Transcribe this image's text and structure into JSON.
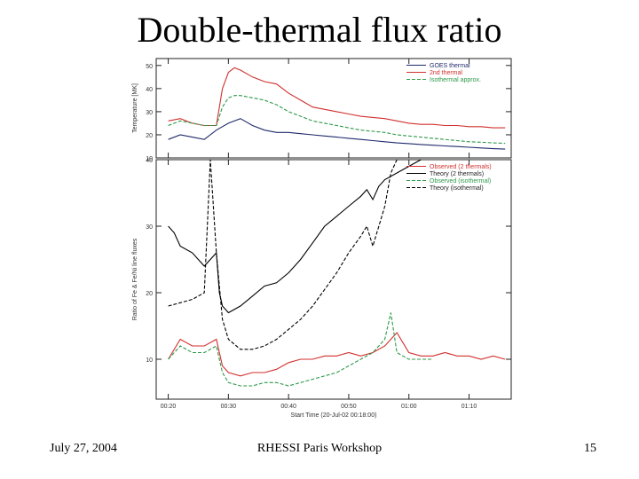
{
  "slide": {
    "title": "Double-thermal flux ratio",
    "footer_date": "July 27, 2004",
    "footer_center": "RHESSI Paris Workshop",
    "page_number": "15"
  },
  "chart_data": [
    {
      "type": "line",
      "ylabel": "Temperature [MK]",
      "ylim": [
        10,
        53
      ],
      "yticks": [
        10,
        20,
        30,
        40,
        50
      ],
      "xlim": [
        18,
        77
      ],
      "xticks": [
        20,
        30,
        40,
        50,
        60,
        70
      ],
      "legend_position": "top-right",
      "series": [
        {
          "name": "GOES thermal",
          "color": "#1f2a6b",
          "style": "solid",
          "x": [
            20,
            22,
            24,
            26,
            28,
            30,
            32,
            34,
            36,
            38,
            40,
            42,
            44,
            46,
            48,
            50,
            52,
            54,
            56,
            58,
            60,
            62,
            64,
            66,
            68,
            70,
            72,
            74,
            76
          ],
          "y": [
            18,
            20,
            19,
            18,
            22,
            25,
            27,
            24,
            22,
            21,
            21,
            20.5,
            20,
            19.5,
            19,
            18.5,
            18,
            17.5,
            17,
            16.5,
            16.2,
            15.8,
            15.5,
            15.2,
            14.9,
            14.6,
            14.3,
            14,
            13.8
          ]
        },
        {
          "name": "2nd thermal",
          "color": "#d0302e",
          "style": "solid",
          "x": [
            20,
            22,
            24,
            26,
            28,
            29,
            30,
            31,
            32,
            34,
            36,
            38,
            40,
            42,
            44,
            46,
            48,
            50,
            52,
            54,
            56,
            58,
            60,
            62,
            64,
            66,
            68,
            70,
            72,
            74,
            76
          ],
          "y": [
            26,
            27,
            25,
            24,
            24,
            40,
            47,
            49,
            48,
            45,
            43,
            42,
            38,
            35,
            32,
            31,
            30,
            29,
            28,
            27.5,
            27,
            26,
            25,
            24.5,
            24.5,
            24,
            24,
            23.5,
            23.5,
            23,
            23
          ]
        },
        {
          "name": "Isothermal approx.",
          "color": "#2e9a4a",
          "style": "dashed",
          "x": [
            20,
            22,
            24,
            26,
            28,
            29,
            30,
            31,
            32,
            34,
            36,
            38,
            40,
            42,
            44,
            46,
            48,
            50,
            52,
            54,
            56,
            58,
            60,
            62,
            64,
            66,
            68,
            70,
            72,
            74,
            76
          ],
          "y": [
            24,
            26,
            25,
            24,
            24,
            32,
            36,
            37,
            37,
            36,
            35,
            33,
            30,
            28,
            26,
            25,
            24,
            23,
            22,
            21.5,
            21,
            20,
            19.5,
            19,
            18.5,
            18,
            17.5,
            17,
            16.8,
            16.5,
            16.3
          ]
        }
      ]
    },
    {
      "type": "line",
      "ylabel": "Ratio of Fe & Fe/Ni line fluxes",
      "xlabel": "Start Time (20-Jul-02 00:18:00)",
      "ylim": [
        4,
        40
      ],
      "yticks": [
        10,
        20,
        30,
        40
      ],
      "xlim": [
        18,
        77
      ],
      "xticks": [
        20,
        30,
        40,
        50,
        60,
        70
      ],
      "xtick_labels": [
        "00:20",
        "00:30",
        "00:40",
        "00:50",
        "01:00",
        "01:10"
      ],
      "legend_position": "top-right",
      "series": [
        {
          "name": "Observed (2 thermals)",
          "color": "#d0302e",
          "style": "solid",
          "x": [
            20,
            22,
            24,
            26,
            28,
            29,
            30,
            32,
            34,
            36,
            38,
            40,
            42,
            44,
            46,
            48,
            50,
            52,
            54,
            56,
            58,
            60,
            62,
            64,
            66,
            68,
            70,
            72,
            74,
            76
          ],
          "y": [
            10,
            13,
            12,
            12,
            13,
            9,
            8,
            7.5,
            8,
            8,
            8.5,
            9.5,
            10,
            10,
            10.5,
            10.5,
            11,
            10.5,
            11,
            12,
            14,
            11,
            10.5,
            10.5,
            11,
            10.5,
            10.5,
            10,
            10.5,
            10
          ]
        },
        {
          "name": "Theory (2 thermals)",
          "color": "#000000",
          "style": "solid",
          "x": [
            20,
            21,
            22,
            24,
            26,
            28,
            28.5,
            29,
            30,
            32,
            34,
            36,
            38,
            40,
            42,
            44,
            46,
            48,
            50,
            52,
            53,
            54,
            55,
            56,
            58,
            60,
            62
          ],
          "y": [
            30,
            29,
            27,
            26,
            24,
            26,
            20,
            18,
            17,
            18,
            19.5,
            21,
            21.5,
            23,
            25,
            27.5,
            30,
            31.5,
            33,
            34.5,
            35.5,
            34,
            36,
            37,
            38,
            39,
            40
          ]
        },
        {
          "name": "Observed (isothermal)",
          "color": "#2e9a4a",
          "style": "dashed",
          "x": [
            20,
            22,
            24,
            26,
            28,
            29,
            30,
            32,
            34,
            36,
            38,
            40,
            42,
            44,
            46,
            48,
            50,
            52,
            54,
            56,
            57,
            58,
            60,
            62,
            64
          ],
          "y": [
            10,
            12,
            11,
            11,
            12,
            8,
            6.5,
            6,
            6,
            6.5,
            6.5,
            6,
            6.5,
            7,
            7.5,
            8,
            9,
            10,
            11,
            13,
            17,
            11,
            10,
            10,
            10
          ]
        },
        {
          "name": "Theory (isothermal)",
          "color": "#000000",
          "style": "dashed",
          "x": [
            20,
            22,
            24,
            26,
            27,
            28,
            29,
            30,
            32,
            34,
            36,
            38,
            40,
            42,
            44,
            46,
            48,
            50,
            52,
            53,
            54,
            56,
            57,
            58
          ],
          "y": [
            18,
            18.5,
            19,
            20,
            40,
            26,
            16,
            13,
            11.5,
            11.5,
            12,
            13,
            14.5,
            16,
            18,
            20.5,
            23,
            26,
            28.5,
            30,
            27,
            33,
            38,
            40
          ]
        }
      ]
    }
  ]
}
